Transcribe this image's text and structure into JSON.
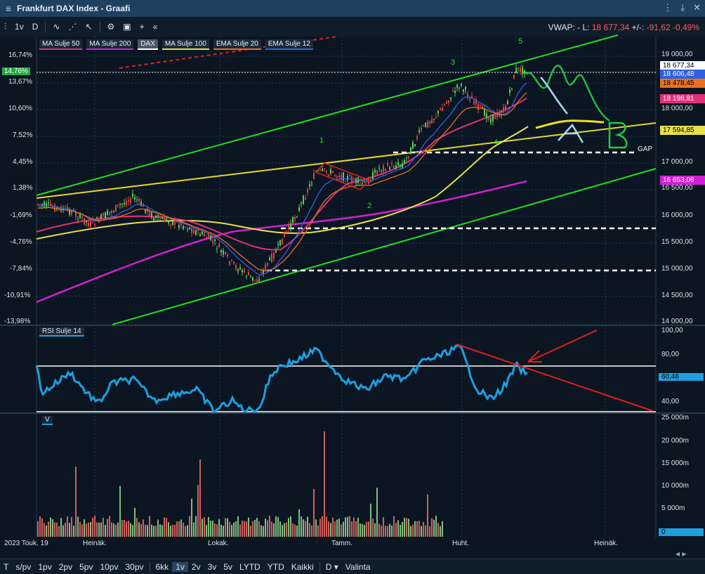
{
  "window": {
    "title": "Frankfurt DAX Index - Graafi"
  },
  "toolbar": {
    "items": [
      "1v",
      "D"
    ],
    "icons": [
      "candle-icon",
      "line-tool-icon",
      "indicator-icon",
      "cursor-icon",
      "settings-icon",
      "layout-icon",
      "crosshair-icon",
      "collapse-icon"
    ]
  },
  "quote": {
    "vwap_label": "VWAP:",
    "vwap_value": "-",
    "last_label": "L:",
    "last_value": "18 677,34",
    "change_label": "+/-:",
    "change_value": "-91,62",
    "change_pct": "-0,49%"
  },
  "legend": [
    {
      "label": "MA Sulje 50",
      "color": "#e0307a"
    },
    {
      "label": "MA Sulje 200",
      "color": "#d020d0"
    },
    {
      "label": "DAX",
      "color": "#ffffff"
    },
    {
      "label": "MA Sulje 100",
      "color": "#e8e04a"
    },
    {
      "label": "EMA Sulje 20",
      "color": "#e87020"
    },
    {
      "label": "EMA Sulje 12",
      "color": "#3060e0"
    }
  ],
  "left_axis": [
    "16,74%",
    "13,67%",
    "10,60%",
    "7,52%",
    "4,45%",
    "1,38%",
    "-1,69%",
    "-4,76%",
    "-7,84%",
    "-10,91%",
    "-13,98%"
  ],
  "left_highlight": "14,76%",
  "right_axis": [
    "19 000,00",
    "18 000,00",
    "17 000,00",
    "16 500,00",
    "16 000,00",
    "15 500,00",
    "15 000,00",
    "14 500,00",
    "14 000,00"
  ],
  "price_tags": [
    {
      "text": "18 677,34",
      "bg": "#ffffff",
      "fg": "#000000"
    },
    {
      "text": "18 606,48",
      "bg": "#3060e0",
      "fg": "#ffffff"
    },
    {
      "text": "18 478,45",
      "bg": "#e87020",
      "fg": "#000000"
    },
    {
      "text": "18 198,81",
      "bg": "#e0307a",
      "fg": "#ffffff"
    },
    {
      "text": "17 594,85",
      "bg": "#e8e04a",
      "fg": "#000000"
    },
    {
      "text": "16 653,06",
      "bg": "#d020d0",
      "fg": "#ffffff"
    }
  ],
  "wave_labels": [
    "1",
    "2",
    "3",
    "4",
    "5"
  ],
  "annotations": {
    "gap": "GAP"
  },
  "rsi": {
    "legend": "RSI Sulje 14",
    "axis": [
      "100,00",
      "80,00",
      "40,00"
    ],
    "value": "60,46"
  },
  "volume": {
    "legend": "V",
    "axis": [
      "25 000m",
      "20 000m",
      "15 000m",
      "10 000m",
      "5 000m",
      "0"
    ]
  },
  "time_axis": [
    "2023 Touk. 19",
    "Heinäk.",
    "Lokak.",
    "Tamm.",
    "Huht.",
    "Heinäk."
  ],
  "ranges": [
    "T",
    "s/pv",
    "1pv",
    "2pv",
    "5pv",
    "10pv",
    "30pv",
    "6kk",
    "1v",
    "2v",
    "3v",
    "5v",
    "LYTD",
    "YTD",
    "Kaikki",
    "D",
    "Valinta"
  ],
  "active_range": "1v"
}
